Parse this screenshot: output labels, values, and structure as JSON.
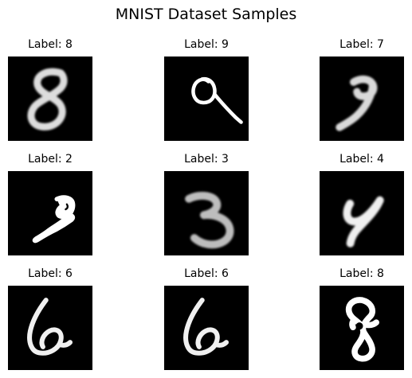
{
  "figure": {
    "title": "MNIST Dataset Samples"
  },
  "samples": [
    {
      "label": "Label: 8",
      "digit": "8"
    },
    {
      "label": "Label: 9",
      "digit": "9"
    },
    {
      "label": "Label: 7",
      "digit": "7"
    },
    {
      "label": "Label: 2",
      "digit": "2"
    },
    {
      "label": "Label: 3",
      "digit": "3"
    },
    {
      "label": "Label: 4",
      "digit": "4"
    },
    {
      "label": "Label: 6",
      "digit": "6"
    },
    {
      "label": "Label: 6",
      "digit": "6"
    },
    {
      "label": "Label: 8",
      "digit": "8"
    }
  ],
  "colors": {
    "image_background": "#000000",
    "stroke": "#ffffff"
  }
}
